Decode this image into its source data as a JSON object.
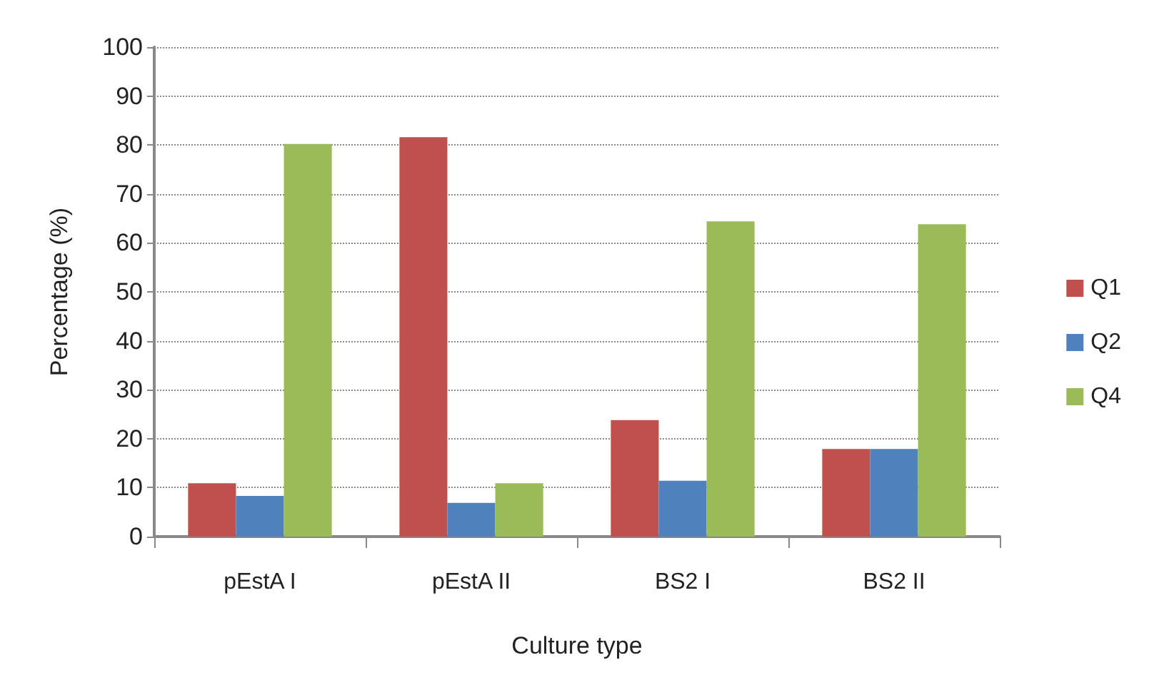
{
  "chart_data": {
    "type": "bar",
    "xlabel": "Culture type",
    "ylabel": "Percentage (%)",
    "categories": [
      "pEstA I",
      "pEstA II",
      "BS2 I",
      "BS2 II"
    ],
    "series": [
      {
        "name": "Q1",
        "color": "#c0504d",
        "values": [
          10.9,
          81.6,
          23.8,
          17.9
        ]
      },
      {
        "name": "Q2",
        "color": "#4f81bd",
        "values": [
          8.3,
          6.9,
          11.4,
          17.9
        ]
      },
      {
        "name": "Q4",
        "color": "#9bbb59",
        "values": [
          80.2,
          10.9,
          64.4,
          63.8
        ]
      }
    ],
    "ylim": [
      0,
      100
    ],
    "yticks": [
      0,
      10,
      20,
      30,
      40,
      50,
      60,
      70,
      80,
      90,
      100
    ],
    "grid": "y",
    "legend": "right"
  }
}
